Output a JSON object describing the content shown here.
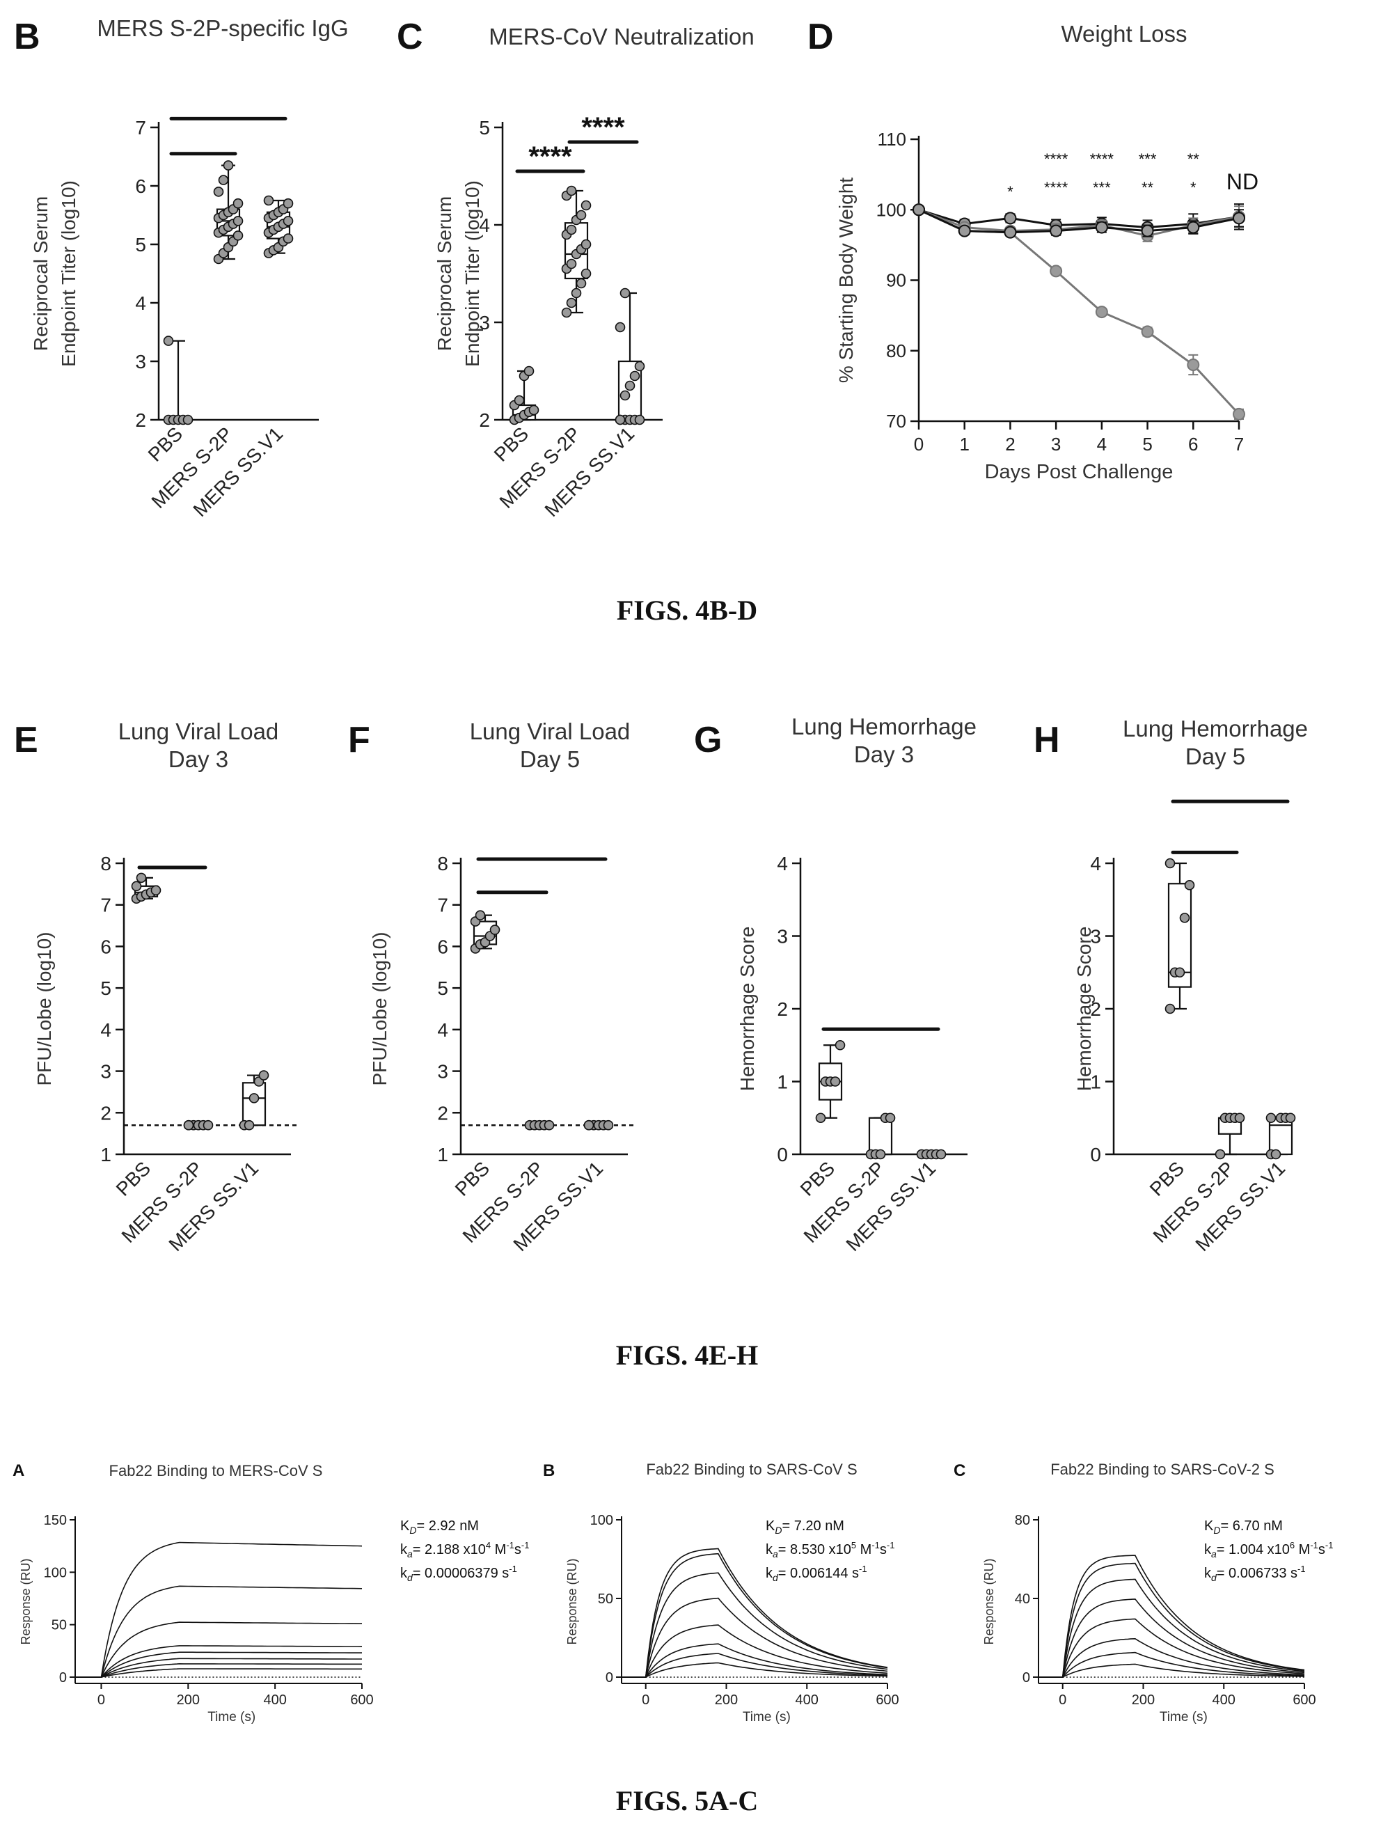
{
  "figure_captions": [
    "FIGS. 4B-D",
    "FIGS. 4E-H",
    "FIGS. 5A-C"
  ],
  "colors": {
    "ink": "#111111",
    "point_fill": "#9a9a9a",
    "gray_series": "#777777"
  },
  "chart_data": [
    {
      "id": "4B",
      "panel_label": "B",
      "type": "box",
      "title": "MERS S-2P-specific IgG",
      "title_lines": [
        "MERS S-2P-specific IgG"
      ],
      "ylabel_lines": [
        "Reciprocal Serum",
        "Endpoint Titer (log10)"
      ],
      "xlabel": "",
      "ylim": [
        2,
        7
      ],
      "yticks": [
        "2",
        "3",
        "4",
        "5",
        "6",
        "7"
      ],
      "yticks_num": [
        2,
        3,
        4,
        5,
        6,
        7
      ],
      "categories": [
        "PBS",
        "MERS S-2P",
        "MERS SS.V1"
      ],
      "boxes": [
        {
          "min": 2.0,
          "q1": 2.0,
          "median": 2.0,
          "q3": 2.03,
          "max": 3.35
        },
        {
          "min": 4.75,
          "q1": 5.15,
          "median": 5.4,
          "q3": 5.6,
          "max": 6.35
        },
        {
          "min": 4.85,
          "q1": 5.1,
          "median": 5.3,
          "q3": 5.55,
          "max": 5.75
        }
      ],
      "points": [
        [
          2.0,
          2.0,
          2.0,
          2.0,
          2.0,
          3.35
        ],
        [
          4.75,
          4.85,
          4.95,
          5.05,
          5.15,
          5.2,
          5.25,
          5.3,
          5.35,
          5.4,
          5.45,
          5.5,
          5.55,
          5.6,
          5.7,
          5.9,
          6.1,
          6.35
        ],
        [
          4.85,
          4.9,
          4.95,
          5.05,
          5.1,
          5.2,
          5.25,
          5.3,
          5.35,
          5.4,
          5.45,
          5.5,
          5.55,
          5.6,
          5.7,
          5.75
        ]
      ],
      "brackets": [
        {
          "from": 0,
          "to": 2,
          "y": 7.15,
          "label": ""
        },
        {
          "from": 0,
          "to": 1,
          "y": 6.55,
          "label": ""
        }
      ]
    },
    {
      "id": "4C",
      "panel_label": "C",
      "type": "box",
      "title": "MERS-CoV Neutralization",
      "title_lines": [
        "MERS-CoV Neutralization"
      ],
      "ylabel_lines": [
        "Reciprocal Serum",
        "Endpoint Titer (log10)"
      ],
      "xlabel": "",
      "ylim": [
        2,
        5
      ],
      "yticks": [
        "2",
        "3",
        "4",
        "5"
      ],
      "yticks_num": [
        2,
        3,
        4,
        5
      ],
      "categories": [
        "PBS",
        "MERS S-2P",
        "MERS SS.V1"
      ],
      "boxes": [
        {
          "min": 2.0,
          "q1": 2.0,
          "median": 2.05,
          "q3": 2.15,
          "max": 2.5
        },
        {
          "min": 3.1,
          "q1": 3.45,
          "median": 3.7,
          "q3": 4.02,
          "max": 4.35
        },
        {
          "min": 2.0,
          "q1": 2.0,
          "median": 2.0,
          "q3": 2.6,
          "max": 3.3
        }
      ],
      "points": [
        [
          2.0,
          2.02,
          2.05,
          2.08,
          2.1,
          2.15,
          2.2,
          2.45,
          2.5
        ],
        [
          3.1,
          3.2,
          3.3,
          3.4,
          3.5,
          3.55,
          3.6,
          3.7,
          3.75,
          3.8,
          3.9,
          3.95,
          4.05,
          4.1,
          4.2,
          4.3,
          4.35
        ],
        [
          2.0,
          2.0,
          2.0,
          2.0,
          2.0,
          2.0,
          2.25,
          2.35,
          2.45,
          2.55,
          2.95,
          3.3
        ]
      ],
      "brackets": [
        {
          "from": 0,
          "to": 1,
          "y": 4.55,
          "label": "****"
        },
        {
          "from": 1,
          "to": 2,
          "y": 4.85,
          "label": "****"
        }
      ]
    },
    {
      "id": "4D",
      "panel_label": "D",
      "type": "line",
      "title": "Weight Loss",
      "xlabel": "Days Post Challenge",
      "ylabel": "% Starting Body Weight",
      "x": [
        0,
        1,
        2,
        3,
        4,
        5,
        6,
        7
      ],
      "xlim": [
        0,
        7
      ],
      "ylim": [
        70,
        110
      ],
      "xticks": [
        "0",
        "1",
        "2",
        "3",
        "4",
        "5",
        "6",
        "7"
      ],
      "yticks": [
        "70",
        "80",
        "90",
        "100",
        "110"
      ],
      "yticks_num": [
        70,
        80,
        90,
        100,
        110
      ],
      "series": [
        {
          "values": [
            100,
            97,
            96.8,
            91.3,
            85.5,
            82.7,
            78,
            71
          ],
          "color": "gray",
          "errors": [
            0,
            0.4,
            0.5,
            0.5,
            0.5,
            0.6,
            1.4,
            0.7
          ]
        },
        {
          "values": [
            100,
            98,
            98.8,
            97.8,
            98,
            97.5,
            98,
            99
          ],
          "color": "black",
          "errors": [
            0,
            0.6,
            0.6,
            0.8,
            0.9,
            1.0,
            1.4,
            1.8
          ]
        },
        {
          "values": [
            100,
            97.5,
            97,
            97.2,
            97.8,
            96.3,
            97.8,
            99
          ],
          "color": "gray",
          "errors": [
            0,
            0.5,
            0.5,
            0.8,
            0.7,
            0.8,
            1.0,
            1.5
          ]
        },
        {
          "values": [
            100,
            97,
            96.8,
            97,
            97.5,
            97,
            97.5,
            98.8
          ],
          "color": "black",
          "errors": [
            0,
            0.5,
            0.5,
            0.6,
            0.7,
            0.8,
            0.9,
            1.2
          ]
        }
      ],
      "annotations": [
        {
          "x": 2,
          "top": "*",
          "bottom": ""
        },
        {
          "x": 3,
          "top": "****",
          "bottom": "****"
        },
        {
          "x": 4,
          "top": "****",
          "bottom": "***"
        },
        {
          "x": 5,
          "top": "***",
          "bottom": "**"
        },
        {
          "x": 6,
          "top": "**",
          "bottom": "*"
        },
        {
          "x": 7,
          "top": "ND",
          "bottom": ""
        }
      ]
    },
    {
      "id": "4E",
      "panel_label": "E",
      "type": "box",
      "title": "Lung Viral Load Day 3",
      "title_lines": [
        "Lung Viral Load",
        "Day 3"
      ],
      "ylabel_lines": [
        "PFU/Lobe (log10)"
      ],
      "xlabel": "",
      "ylim": [
        1,
        8
      ],
      "yticks": [
        "1",
        "2",
        "3",
        "4",
        "5",
        "6",
        "7",
        "8"
      ],
      "yticks_num": [
        1,
        2,
        3,
        4,
        5,
        6,
        7,
        8
      ],
      "categories": [
        "PBS",
        "MERS S-2P",
        "MERS SS.V1"
      ],
      "detection_limit": 1.7,
      "boxes": [
        {
          "min": 7.15,
          "q1": 7.2,
          "median": 7.3,
          "q3": 7.45,
          "max": 7.65
        },
        {
          "min": 1.7,
          "q1": 1.7,
          "median": 1.7,
          "q3": 1.7,
          "max": 1.7
        },
        {
          "min": 1.7,
          "q1": 1.7,
          "median": 2.35,
          "q3": 2.72,
          "max": 2.9
        }
      ],
      "points": [
        [
          7.15,
          7.2,
          7.25,
          7.3,
          7.35,
          7.45,
          7.65
        ],
        [
          1.7,
          1.7,
          1.7,
          1.7,
          1.7,
          1.7
        ],
        [
          1.7,
          1.7,
          2.35,
          2.75,
          2.9
        ]
      ],
      "brackets": [
        {
          "from": 0,
          "to": 1,
          "y": 7.9,
          "label": ""
        }
      ]
    },
    {
      "id": "4F",
      "panel_label": "F",
      "type": "box",
      "title": "Lung Viral Load Day 5",
      "title_lines": [
        "Lung Viral Load",
        "Day 5"
      ],
      "ylabel_lines": [
        "PFU/Lobe (log10)"
      ],
      "xlabel": "",
      "ylim": [
        1,
        8
      ],
      "yticks": [
        "1",
        "2",
        "3",
        "4",
        "5",
        "6",
        "7",
        "8"
      ],
      "yticks_num": [
        1,
        2,
        3,
        4,
        5,
        6,
        7,
        8
      ],
      "categories": [
        "PBS",
        "MERS S-2P",
        "MERS SS.V1"
      ],
      "detection_limit": 1.7,
      "boxes": [
        {
          "min": 5.95,
          "q1": 6.05,
          "median": 6.25,
          "q3": 6.6,
          "max": 6.75
        },
        {
          "min": 1.7,
          "q1": 1.7,
          "median": 1.7,
          "q3": 1.7,
          "max": 1.7
        },
        {
          "min": 1.7,
          "q1": 1.7,
          "median": 1.7,
          "q3": 1.7,
          "max": 1.7
        }
      ],
      "points": [
        [
          5.95,
          6.05,
          6.1,
          6.25,
          6.4,
          6.6,
          6.75
        ],
        [
          1.7,
          1.7,
          1.7,
          1.7,
          1.7
        ],
        [
          1.7,
          1.7,
          1.7,
          1.7,
          1.7,
          1.7
        ]
      ],
      "brackets": [
        {
          "from": 0,
          "to": 2,
          "y": 8.1,
          "label": ""
        },
        {
          "from": 0,
          "to": 1,
          "y": 7.3,
          "label": ""
        }
      ]
    },
    {
      "id": "4G",
      "panel_label": "G",
      "type": "box",
      "title": "Lung Hemorrhage Day 3",
      "title_lines": [
        "Lung Hemorrhage",
        "Day 3"
      ],
      "ylabel_lines": [
        "Hemorrhage Score"
      ],
      "xlabel": "",
      "ylim": [
        0,
        4
      ],
      "yticks": [
        "0",
        "1",
        "2",
        "3",
        "4"
      ],
      "yticks_num": [
        0,
        1,
        2,
        3,
        4
      ],
      "categories": [
        "PBS",
        "MERS S-2P",
        "MERS SS.V1"
      ],
      "boxes": [
        {
          "min": 0.5,
          "q1": 0.75,
          "median": 1.0,
          "q3": 1.25,
          "max": 1.5
        },
        {
          "min": 0.0,
          "q1": 0.0,
          "median": 0.0,
          "q3": 0.5,
          "max": 0.5
        },
        {
          "min": 0.0,
          "q1": 0.0,
          "median": 0.0,
          "q3": 0.0,
          "max": 0.0
        }
      ],
      "points": [
        [
          0.5,
          1.0,
          1.0,
          1.0,
          1.5
        ],
        [
          0.0,
          0.0,
          0.0,
          0.5,
          0.5
        ],
        [
          0.0,
          0.0,
          0.0,
          0.0,
          0.0
        ]
      ],
      "brackets": [
        {
          "from": 0,
          "to": 2,
          "y": 1.72,
          "label": ""
        }
      ]
    },
    {
      "id": "4H",
      "panel_label": "H",
      "type": "box",
      "title": "Lung Hemorrhage Day 5",
      "title_lines": [
        "Lung Hemorrhage",
        "Day 5"
      ],
      "ylabel_lines": [
        "Hemorrhage Score"
      ],
      "xlabel": "",
      "ylim": [
        0,
        4
      ],
      "yticks": [
        "0",
        "1",
        "2",
        "3",
        "4"
      ],
      "yticks_num": [
        0,
        1,
        2,
        3,
        4
      ],
      "categories": [
        "PBS",
        "MERS S-2P",
        "MERS SS.V1"
      ],
      "boxes": [
        {
          "min": 2.0,
          "q1": 2.3,
          "median": 2.5,
          "q3": 3.72,
          "max": 4.0
        },
        {
          "min": 0.0,
          "q1": 0.28,
          "median": 0.5,
          "q3": 0.5,
          "max": 0.5
        },
        {
          "min": 0.0,
          "q1": 0.0,
          "median": 0.4,
          "q3": 0.5,
          "max": 0.5
        }
      ],
      "points": [
        [
          2.0,
          2.5,
          2.5,
          3.25,
          3.7,
          4.0
        ],
        [
          0.0,
          0.5,
          0.5,
          0.5,
          0.5
        ],
        [
          0.0,
          0.0,
          0.5,
          0.5,
          0.5,
          0.5
        ]
      ],
      "brackets": [
        {
          "from": 0,
          "to": 2,
          "y": 4.85,
          "label": ""
        },
        {
          "from": 0,
          "to": 1,
          "y": 4.15,
          "label": ""
        }
      ]
    },
    {
      "id": "5A",
      "panel_label": "A",
      "type": "line",
      "title": "Fab22 Binding to MERS-CoV S",
      "xlabel": "Time (s)",
      "ylabel": "Response (RU)",
      "xlim": [
        0,
        600
      ],
      "ylim": [
        0,
        150
      ],
      "xticks": [
        "0",
        "200",
        "400",
        "600"
      ],
      "xticks_num": [
        0,
        200,
        400,
        600
      ],
      "yticks": [
        "0",
        "50",
        "100",
        "150"
      ],
      "yticks_num": [
        0,
        50,
        100,
        150
      ],
      "assoc_end": 180,
      "k_on": 0.02,
      "k_off": 6.379e-05,
      "curve_plateaus": [
        132,
        90,
        55,
        32,
        26,
        20,
        15,
        10
      ],
      "kinetics_lines": [
        [
          "K",
          "D",
          "= 2.92 nM"
        ],
        [
          "k",
          "a",
          "= 2.188 x10",
          "4",
          " M",
          "-1",
          "s",
          "-1"
        ],
        [
          "k",
          "d",
          "= 0.00006379 s",
          "-1",
          ""
        ]
      ]
    },
    {
      "id": "5B",
      "panel_label": "B",
      "type": "line",
      "title": "Fab22 Binding to SARS-CoV S",
      "xlabel": "Time (s)",
      "ylabel": "Response (RU)",
      "xlim": [
        0,
        600
      ],
      "ylim": [
        0,
        100
      ],
      "xticks": [
        "0",
        "200",
        "400",
        "600"
      ],
      "xticks_num": [
        0,
        200,
        400,
        600
      ],
      "yticks": [
        "0",
        "50",
        "100"
      ],
      "yticks_num": [
        0,
        50,
        100
      ],
      "assoc_end": 180,
      "k_on": 0.03,
      "k_off": 0.006144,
      "curve_plateaus": [
        82,
        79,
        67,
        51,
        34,
        22,
        16,
        10
      ],
      "kinetics_lines": [
        [
          "K",
          "D",
          "= 7.20 nM"
        ],
        [
          "k",
          "a",
          "= 8.530 x10",
          "5",
          " M",
          "-1",
          "s",
          "-1"
        ],
        [
          "k",
          "d",
          "= 0.006144 s",
          "-1",
          ""
        ]
      ]
    },
    {
      "id": "5C",
      "panel_label": "C",
      "type": "line",
      "title": "Fab22 Binding to SARS-CoV-2 S",
      "xlabel": "Time (s)",
      "ylabel": "Response (RU)",
      "xlim": [
        0,
        600
      ],
      "ylim": [
        0,
        80
      ],
      "xticks": [
        "0",
        "200",
        "400",
        "600"
      ],
      "xticks_num": [
        0,
        200,
        400,
        600
      ],
      "yticks": [
        "0",
        "40",
        "80"
      ],
      "yticks_num": [
        0,
        40,
        80
      ],
      "assoc_end": 180,
      "k_on": 0.035,
      "k_off": 0.006733,
      "curve_plateaus": [
        62,
        58,
        50,
        40,
        30,
        20,
        13,
        7
      ],
      "kinetics_lines": [
        [
          "K",
          "D",
          "= 6.70 nM"
        ],
        [
          "k",
          "a",
          "= 1.004 x10",
          "6",
          " M",
          "-1",
          "s",
          "-1"
        ],
        [
          "k",
          "d",
          "= 0.006733 s",
          "-1",
          ""
        ]
      ]
    }
  ]
}
